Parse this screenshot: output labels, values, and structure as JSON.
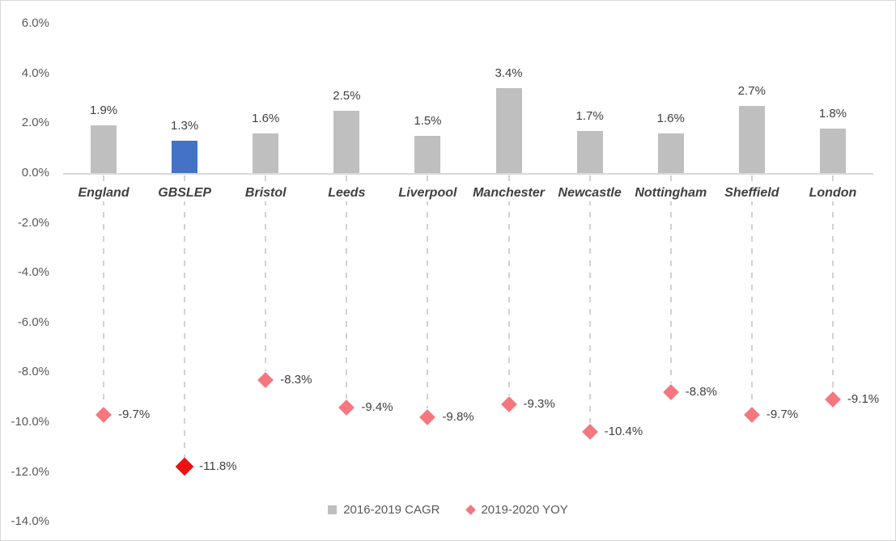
{
  "chart_data": {
    "type": "bar",
    "title": "",
    "categories": [
      "England",
      "GBSLEP",
      "Bristol",
      "Leeds",
      "Liverpool",
      "Manchester",
      "Newcastle",
      "Nottingham",
      "Sheffield",
      "London"
    ],
    "series": [
      {
        "name": "2016-2019 CAGR",
        "type": "bar",
        "values": [
          1.9,
          1.3,
          1.6,
          2.5,
          1.5,
          3.4,
          1.7,
          1.6,
          2.7,
          1.8
        ],
        "labels": [
          "1.9%",
          "1.3%",
          "1.6%",
          "2.5%",
          "1.5%",
          "3.4%",
          "1.7%",
          "1.6%",
          "2.7%",
          "1.8%"
        ]
      },
      {
        "name": "2019-2020 YOY",
        "type": "scatter",
        "marker": "diamond",
        "values": [
          -9.7,
          -11.8,
          -8.3,
          -9.4,
          -9.8,
          -9.3,
          -10.4,
          -8.8,
          -9.7,
          -9.1
        ],
        "labels": [
          "-9.7%",
          "-11.8%",
          "-8.3%",
          "-9.4%",
          "-9.8%",
          "-9.3%",
          "-10.4%",
          "-8.8%",
          "-9.7%",
          "-9.1%"
        ]
      }
    ],
    "highlight_category": "GBSLEP",
    "ylim": [
      -14,
      6
    ],
    "ytick_step": 2,
    "ytick_labels": [
      "6.0%",
      "4.0%",
      "2.0%",
      "0.0%",
      "-2.0%",
      "-4.0%",
      "-6.0%",
      "-8.0%",
      "-10.0%",
      "-12.0%",
      "-14.0%"
    ],
    "grid": false,
    "legend_position": "bottom",
    "legend": [
      {
        "label": "2016-2019 CAGR",
        "marker": "square"
      },
      {
        "label": "2019-2020 YOY",
        "marker": "diamond"
      }
    ],
    "colors": {
      "bar_default": "#bfbfbf",
      "bar_highlight": "#4472c4",
      "marker_default": "#f4777f",
      "marker_highlight": "#ed1111",
      "axis_text": "#595959",
      "data_label_text": "#404040",
      "category_text": "#404040",
      "axis_line": "#d9d9d9",
      "drop_line": "#d2d2d2",
      "border": "#d9d9d9"
    }
  }
}
